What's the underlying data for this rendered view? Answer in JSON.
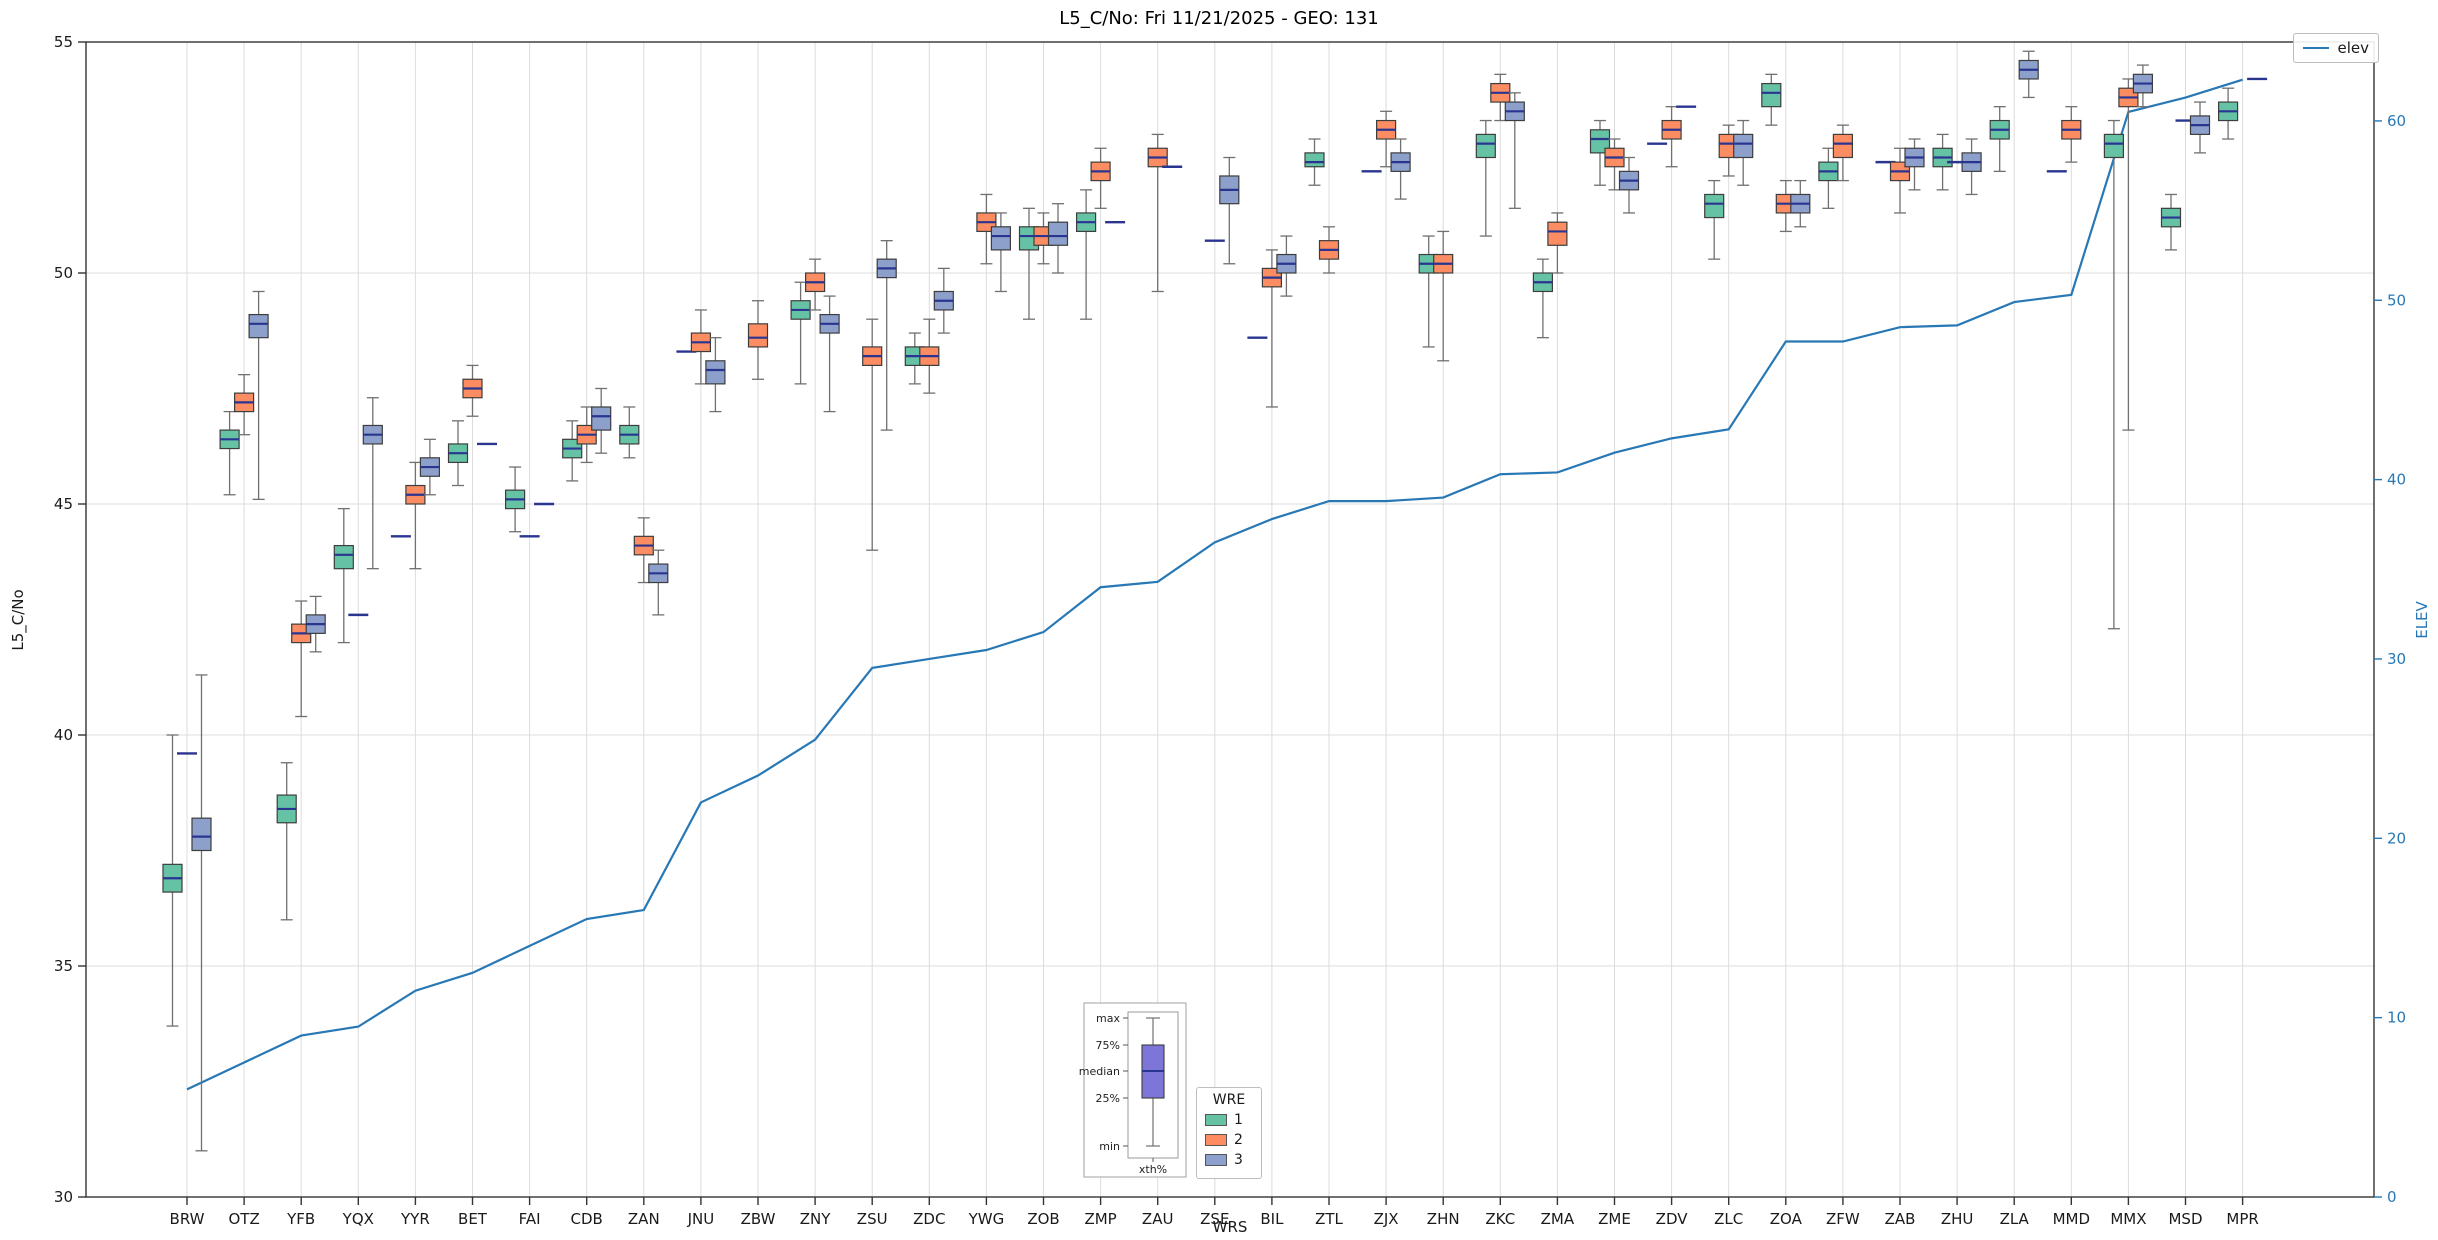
{
  "chart_data": {
    "type": "boxplot+line",
    "title": "L5_C/No: Fri 11/21/2025 - GEO: 131",
    "xlabel": "WRS",
    "ylabel": "L5_C/No",
    "y2label": "ELEV",
    "ylim": [
      30,
      55
    ],
    "y2lim": [
      0,
      64.4
    ],
    "yticks": [
      30,
      35,
      40,
      45,
      50,
      55
    ],
    "y2ticks": [
      0,
      10,
      20,
      30,
      40,
      50,
      60
    ],
    "grid": true,
    "legend_position": "top-right",
    "categories": [
      "BRW",
      "OTZ",
      "YFB",
      "YQX",
      "YYR",
      "BET",
      "FAI",
      "CDB",
      "ZAN",
      "JNU",
      "ZBW",
      "ZNY",
      "ZSU",
      "ZDC",
      "YWG",
      "ZOB",
      "ZMP",
      "ZAU",
      "ZSE",
      "BIL",
      "ZTL",
      "ZJX",
      "ZHN",
      "ZKC",
      "ZMA",
      "ZME",
      "ZDV",
      "ZLC",
      "ZOA",
      "ZFW",
      "ZAB",
      "ZHU",
      "ZLA",
      "MMD",
      "MMX",
      "MSD",
      "MPR"
    ],
    "wre_legend": {
      "title": "WRE",
      "entries": [
        {
          "label": "1",
          "color": "#66c2a5"
        },
        {
          "label": "2",
          "color": "#fc8d62"
        },
        {
          "label": "3",
          "color": "#8da0cb"
        }
      ]
    },
    "line_series": {
      "name": "elev",
      "color": "#2878b5",
      "values": [
        6,
        7.5,
        9,
        9.5,
        11.5,
        12.5,
        14,
        15.5,
        16,
        22,
        23.5,
        25.5,
        29.5,
        30,
        30.5,
        31.5,
        34,
        34.3,
        36.5,
        37.8,
        38.8,
        38.8,
        39,
        40.3,
        40.4,
        41.5,
        42.3,
        42.8,
        47.7,
        47.7,
        48.5,
        48.6,
        49.9,
        50.3,
        60.5,
        61.3,
        62.3
      ]
    },
    "box_style": {
      "median_color": "#2a3590",
      "whisker_color": "#707070",
      "edge_color": "#3d3d3d"
    },
    "box_legend": {
      "labels": [
        "max",
        "75%",
        "median",
        "25%",
        "min"
      ],
      "footer": "xth%",
      "box_color": "#7d75d8"
    },
    "box_groups": [
      [
        [
          1,
          33.7,
          36.6,
          36.9,
          37.2,
          40.0
        ],
        [
          2,
          39.6,
          39.6,
          39.6,
          39.6,
          39.6
        ],
        [
          3,
          31.0,
          37.5,
          37.8,
          38.2,
          41.3
        ]
      ],
      [
        [
          1,
          45.2,
          46.2,
          46.4,
          46.6,
          47.0
        ],
        [
          2,
          46.5,
          47.0,
          47.2,
          47.4,
          47.8
        ],
        [
          3,
          45.1,
          48.6,
          48.9,
          49.1,
          49.6
        ]
      ],
      [
        [
          1,
          36.0,
          38.1,
          38.4,
          38.7,
          39.4
        ],
        [
          2,
          40.4,
          42.0,
          42.2,
          42.4,
          42.9
        ],
        [
          3,
          41.8,
          42.2,
          42.4,
          42.6,
          43.0
        ]
      ],
      [
        [
          1,
          42.0,
          43.6,
          43.9,
          44.1,
          44.9
        ],
        [
          2,
          42.6,
          42.6,
          42.6,
          42.6,
          42.6
        ],
        [
          3,
          43.6,
          46.3,
          46.5,
          46.7,
          47.3
        ]
      ],
      [
        [
          1,
          44.3,
          44.3,
          44.3,
          44.3,
          44.3
        ],
        [
          2,
          43.6,
          45.0,
          45.2,
          45.4,
          45.9
        ],
        [
          3,
          45.2,
          45.6,
          45.8,
          46.0,
          46.4
        ]
      ],
      [
        [
          1,
          45.4,
          45.9,
          46.1,
          46.3,
          46.8
        ],
        [
          2,
          46.9,
          47.3,
          47.5,
          47.7,
          48.0
        ],
        [
          3,
          46.3,
          46.3,
          46.3,
          46.3,
          46.3
        ]
      ],
      [
        [
          1,
          44.4,
          44.9,
          45.1,
          45.3,
          45.8
        ],
        [
          2,
          44.3,
          44.3,
          44.3,
          44.3,
          44.3
        ],
        [
          3,
          45.0,
          45.0,
          45.0,
          45.0,
          45.0
        ]
      ],
      [
        [
          1,
          45.5,
          46.0,
          46.2,
          46.4,
          46.8
        ],
        [
          2,
          45.9,
          46.3,
          46.5,
          46.7,
          47.1
        ],
        [
          3,
          46.1,
          46.6,
          46.9,
          47.1,
          47.5
        ]
      ],
      [
        [
          1,
          46.0,
          46.3,
          46.5,
          46.7,
          47.1
        ],
        [
          2,
          43.3,
          43.9,
          44.1,
          44.3,
          44.7
        ],
        [
          3,
          42.6,
          43.3,
          43.5,
          43.7,
          44.0
        ]
      ],
      [
        [
          1,
          48.3,
          48.3,
          48.3,
          48.3,
          48.3
        ],
        [
          2,
          47.6,
          48.3,
          48.5,
          48.7,
          49.2
        ],
        [
          3,
          47.0,
          47.6,
          47.9,
          48.1,
          48.6
        ]
      ],
      [
        [
          2,
          47.7,
          48.4,
          48.6,
          48.9,
          49.4
        ]
      ],
      [
        [
          1,
          47.6,
          49.0,
          49.2,
          49.4,
          49.8
        ],
        [
          2,
          49.2,
          49.6,
          49.8,
          50.0,
          50.3
        ],
        [
          3,
          47.0,
          48.7,
          48.9,
          49.1,
          49.5
        ]
      ],
      [
        [
          2,
          44.0,
          48.0,
          48.2,
          48.4,
          49.0
        ],
        [
          3,
          46.6,
          49.9,
          50.1,
          50.3,
          50.7
        ]
      ],
      [
        [
          1,
          47.6,
          48.0,
          48.2,
          48.4,
          48.7
        ],
        [
          2,
          47.4,
          48.0,
          48.2,
          48.4,
          49.0
        ],
        [
          3,
          48.7,
          49.2,
          49.4,
          49.6,
          50.1
        ]
      ],
      [
        [
          2,
          50.2,
          50.9,
          51.1,
          51.3,
          51.7
        ],
        [
          3,
          49.6,
          50.5,
          50.8,
          51.0,
          51.3
        ]
      ],
      [
        [
          1,
          49.0,
          50.5,
          50.8,
          51.0,
          51.4
        ],
        [
          2,
          50.2,
          50.6,
          50.8,
          51.0,
          51.3
        ],
        [
          3,
          50.0,
          50.6,
          50.8,
          51.1,
          51.5
        ]
      ],
      [
        [
          1,
          49.0,
          50.9,
          51.1,
          51.3,
          51.8
        ],
        [
          2,
          51.4,
          52.0,
          52.2,
          52.4,
          52.7
        ],
        [
          3,
          51.1,
          51.1,
          51.1,
          51.1,
          51.1
        ]
      ],
      [
        [
          2,
          49.6,
          52.3,
          52.5,
          52.7,
          53.0
        ],
        [
          3,
          52.3,
          52.3,
          52.3,
          52.3,
          52.3
        ]
      ],
      [
        [
          2,
          50.7,
          50.7,
          50.7,
          50.7,
          50.7
        ],
        [
          3,
          50.2,
          51.5,
          51.8,
          52.1,
          52.5
        ]
      ],
      [
        [
          1,
          48.6,
          48.6,
          48.6,
          48.6,
          48.6
        ],
        [
          2,
          47.1,
          49.7,
          49.9,
          50.1,
          50.5
        ],
        [
          3,
          49.5,
          50.0,
          50.2,
          50.4,
          50.8
        ]
      ],
      [
        [
          1,
          51.9,
          52.3,
          52.4,
          52.6,
          52.9
        ],
        [
          2,
          50.0,
          50.3,
          50.5,
          50.7,
          51.0
        ]
      ],
      [
        [
          1,
          52.2,
          52.2,
          52.2,
          52.2,
          52.2
        ],
        [
          2,
          52.3,
          52.9,
          53.1,
          53.3,
          53.5
        ],
        [
          3,
          51.6,
          52.2,
          52.4,
          52.6,
          52.9
        ]
      ],
      [
        [
          1,
          48.4,
          50.0,
          50.2,
          50.4,
          50.8
        ],
        [
          2,
          48.1,
          50.0,
          50.2,
          50.4,
          50.9
        ]
      ],
      [
        [
          1,
          50.8,
          52.5,
          52.8,
          53.0,
          53.3
        ],
        [
          2,
          53.3,
          53.7,
          53.9,
          54.1,
          54.3
        ],
        [
          3,
          51.4,
          53.3,
          53.5,
          53.7,
          53.9
        ]
      ],
      [
        [
          1,
          48.6,
          49.6,
          49.8,
          50.0,
          50.3
        ],
        [
          2,
          50.0,
          50.6,
          50.9,
          51.1,
          51.3
        ]
      ],
      [
        [
          1,
          51.9,
          52.6,
          52.9,
          53.1,
          53.3
        ],
        [
          2,
          51.8,
          52.3,
          52.5,
          52.7,
          52.9
        ],
        [
          3,
          51.3,
          51.8,
          52.0,
          52.2,
          52.5
        ]
      ],
      [
        [
          1,
          52.8,
          52.8,
          52.8,
          52.8,
          52.8
        ],
        [
          2,
          52.3,
          52.9,
          53.1,
          53.3,
          53.6
        ],
        [
          3,
          53.6,
          53.6,
          53.6,
          53.6,
          53.6
        ]
      ],
      [
        [
          1,
          50.3,
          51.2,
          51.5,
          51.7,
          52.0
        ],
        [
          2,
          52.1,
          52.5,
          52.8,
          53.0,
          53.2
        ],
        [
          3,
          51.9,
          52.5,
          52.8,
          53.0,
          53.3
        ]
      ],
      [
        [
          1,
          53.2,
          53.6,
          53.9,
          54.1,
          54.3
        ],
        [
          2,
          50.9,
          51.3,
          51.5,
          51.7,
          52.0
        ],
        [
          3,
          51.0,
          51.3,
          51.5,
          51.7,
          52.0
        ]
      ],
      [
        [
          1,
          51.4,
          52.0,
          52.2,
          52.4,
          52.7
        ],
        [
          2,
          52.0,
          52.5,
          52.8,
          53.0,
          53.2
        ]
      ],
      [
        [
          1,
          52.4,
          52.4,
          52.4,
          52.4,
          52.4
        ],
        [
          2,
          51.3,
          52.0,
          52.2,
          52.4,
          52.7
        ],
        [
          3,
          51.8,
          52.3,
          52.5,
          52.7,
          52.9
        ]
      ],
      [
        [
          1,
          51.8,
          52.3,
          52.5,
          52.7,
          53.0
        ],
        [
          2,
          52.4,
          52.4,
          52.4,
          52.4,
          52.4
        ],
        [
          3,
          51.7,
          52.2,
          52.4,
          52.6,
          52.9
        ]
      ],
      [
        [
          1,
          52.2,
          52.9,
          53.1,
          53.3,
          53.6
        ],
        [
          3,
          53.8,
          54.2,
          54.4,
          54.6,
          54.8
        ]
      ],
      [
        [
          1,
          52.2,
          52.2,
          52.2,
          52.2,
          52.2
        ],
        [
          2,
          52.4,
          52.9,
          53.1,
          53.3,
          53.6
        ]
      ],
      [
        [
          1,
          42.3,
          52.5,
          52.8,
          53.0,
          53.3
        ],
        [
          2,
          46.6,
          53.6,
          53.8,
          54.0,
          54.2
        ],
        [
          3,
          53.6,
          53.9,
          54.1,
          54.3,
          54.5
        ]
      ],
      [
        [
          1,
          50.5,
          51.0,
          51.2,
          51.4,
          51.7
        ],
        [
          2,
          53.3,
          53.3,
          53.3,
          53.3,
          53.3
        ],
        [
          3,
          52.6,
          53.0,
          53.2,
          53.4,
          53.7
        ]
      ],
      [
        [
          1,
          52.9,
          53.3,
          53.5,
          53.7,
          54.0
        ],
        [
          3,
          54.2,
          54.2,
          54.2,
          54.2,
          54.2
        ]
      ]
    ]
  }
}
